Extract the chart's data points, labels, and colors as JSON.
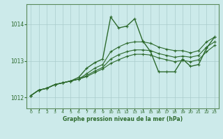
{
  "title": "Graphe pression niveau de la mer (hPa)",
  "background_color": "#cceaea",
  "grid_color": "#aacccc",
  "line_color": "#2d6a2d",
  "spine_color": "#5a8a5a",
  "xlim": [
    -0.5,
    23.5
  ],
  "ylim": [
    1011.7,
    1014.55
  ],
  "yticks": [
    1012,
    1013,
    1014
  ],
  "xticks": [
    0,
    1,
    2,
    3,
    4,
    5,
    6,
    7,
    8,
    9,
    10,
    11,
    12,
    13,
    14,
    15,
    16,
    17,
    18,
    19,
    20,
    21,
    22,
    23
  ],
  "series": [
    {
      "x": [
        0,
        1,
        2,
        3,
        4,
        5,
        6,
        7,
        8,
        9,
        10,
        11,
        12,
        13,
        14,
        15,
        16,
        17,
        18,
        19,
        20,
        21,
        22,
        23
      ],
      "y": [
        1012.05,
        1012.2,
        1012.25,
        1012.35,
        1012.4,
        1012.45,
        1012.55,
        1012.8,
        1012.95,
        1013.05,
        1014.2,
        1013.9,
        1013.95,
        1014.15,
        1013.55,
        1013.25,
        1012.7,
        1012.7,
        1012.7,
        1013.05,
        1012.85,
        1012.9,
        1013.35,
        1013.65
      ],
      "marker": "+",
      "lw": 1.0
    },
    {
      "x": [
        0,
        1,
        2,
        3,
        4,
        5,
        6,
        7,
        8,
        9,
        10,
        11,
        12,
        13,
        14,
        15,
        16,
        17,
        18,
        19,
        20,
        21,
        22,
        23
      ],
      "y": [
        1012.05,
        1012.2,
        1012.25,
        1012.35,
        1012.4,
        1012.45,
        1012.5,
        1012.65,
        1012.8,
        1012.9,
        1013.25,
        1013.38,
        1013.48,
        1013.52,
        1013.52,
        1013.48,
        1013.38,
        1013.32,
        1013.28,
        1013.28,
        1013.22,
        1013.28,
        1013.52,
        1013.65
      ],
      "marker": "+",
      "lw": 0.8
    },
    {
      "x": [
        0,
        1,
        2,
        3,
        4,
        5,
        6,
        7,
        8,
        9,
        10,
        11,
        12,
        13,
        14,
        15,
        16,
        17,
        18,
        19,
        20,
        21,
        22,
        23
      ],
      "y": [
        1012.05,
        1012.2,
        1012.25,
        1012.35,
        1012.4,
        1012.45,
        1012.5,
        1012.6,
        1012.72,
        1012.82,
        1013.05,
        1013.17,
        1013.25,
        1013.3,
        1013.3,
        1013.28,
        1013.2,
        1013.15,
        1013.1,
        1013.13,
        1013.1,
        1013.15,
        1013.38,
        1013.52
      ],
      "marker": "+",
      "lw": 0.8
    },
    {
      "x": [
        0,
        1,
        2,
        3,
        4,
        5,
        6,
        7,
        8,
        9,
        10,
        11,
        12,
        13,
        14,
        15,
        16,
        17,
        18,
        19,
        20,
        21,
        22,
        23
      ],
      "y": [
        1012.05,
        1012.2,
        1012.25,
        1012.35,
        1012.4,
        1012.45,
        1012.5,
        1012.57,
        1012.68,
        1012.78,
        1012.93,
        1013.03,
        1013.12,
        1013.18,
        1013.18,
        1013.16,
        1013.08,
        1013.03,
        1012.98,
        1013.01,
        1012.98,
        1013.03,
        1013.25,
        1013.42
      ],
      "marker": "+",
      "lw": 0.8
    }
  ]
}
